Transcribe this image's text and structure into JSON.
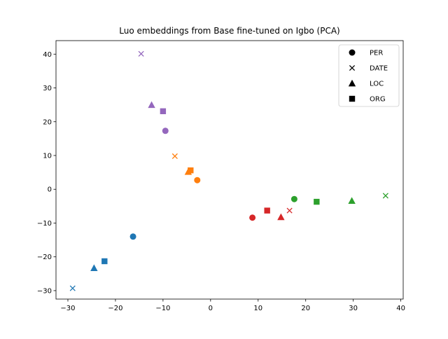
{
  "chart_data": {
    "type": "scatter",
    "title": "Luo embeddings from Base fine-tuned on Igbo (PCA)",
    "xlabel": "",
    "ylabel": "",
    "xlim": [
      -32.5,
      40.5
    ],
    "ylim": [
      -32.5,
      44
    ],
    "xticks": [
      -30,
      -20,
      -10,
      0,
      10,
      20,
      30,
      40
    ],
    "yticks": [
      -30,
      -20,
      -10,
      0,
      10,
      20,
      30,
      40
    ],
    "grid": false,
    "legend_position": "top-right",
    "legend": [
      {
        "label": "PER",
        "marker": "circle"
      },
      {
        "label": "DATE",
        "marker": "x"
      },
      {
        "label": "LOC",
        "marker": "triangle"
      },
      {
        "label": "ORG",
        "marker": "square"
      }
    ],
    "points": [
      {
        "x": -16.3,
        "y": -14.0,
        "marker": "circle",
        "color": "#1f77b4"
      },
      {
        "x": -29.0,
        "y": -29.3,
        "marker": "x",
        "color": "#1f77b4"
      },
      {
        "x": -24.5,
        "y": -23.3,
        "marker": "triangle",
        "color": "#1f77b4"
      },
      {
        "x": -22.3,
        "y": -21.3,
        "marker": "square",
        "color": "#1f77b4"
      },
      {
        "x": -2.8,
        "y": 2.7,
        "marker": "circle",
        "color": "#ff7f0e"
      },
      {
        "x": -7.5,
        "y": 9.8,
        "marker": "x",
        "color": "#ff7f0e"
      },
      {
        "x": -4.7,
        "y": 5.2,
        "marker": "triangle",
        "color": "#ff7f0e"
      },
      {
        "x": -4.2,
        "y": 5.6,
        "marker": "square",
        "color": "#ff7f0e"
      },
      {
        "x": 17.6,
        "y": -2.9,
        "marker": "circle",
        "color": "#2ca02c"
      },
      {
        "x": 36.8,
        "y": -1.9,
        "marker": "x",
        "color": "#2ca02c"
      },
      {
        "x": 29.7,
        "y": -3.4,
        "marker": "triangle",
        "color": "#2ca02c"
      },
      {
        "x": 22.3,
        "y": -3.7,
        "marker": "square",
        "color": "#2ca02c"
      },
      {
        "x": 8.8,
        "y": -8.4,
        "marker": "circle",
        "color": "#d62728"
      },
      {
        "x": 16.6,
        "y": -6.3,
        "marker": "x",
        "color": "#d62728"
      },
      {
        "x": 14.8,
        "y": -8.2,
        "marker": "triangle",
        "color": "#d62728"
      },
      {
        "x": 11.9,
        "y": -6.3,
        "marker": "square",
        "color": "#d62728"
      },
      {
        "x": -9.5,
        "y": 17.3,
        "marker": "circle",
        "color": "#9467bd"
      },
      {
        "x": -14.6,
        "y": 40.1,
        "marker": "x",
        "color": "#9467bd"
      },
      {
        "x": -12.4,
        "y": 25.0,
        "marker": "triangle",
        "color": "#9467bd"
      },
      {
        "x": -10.0,
        "y": 23.1,
        "marker": "square",
        "color": "#9467bd"
      }
    ]
  }
}
